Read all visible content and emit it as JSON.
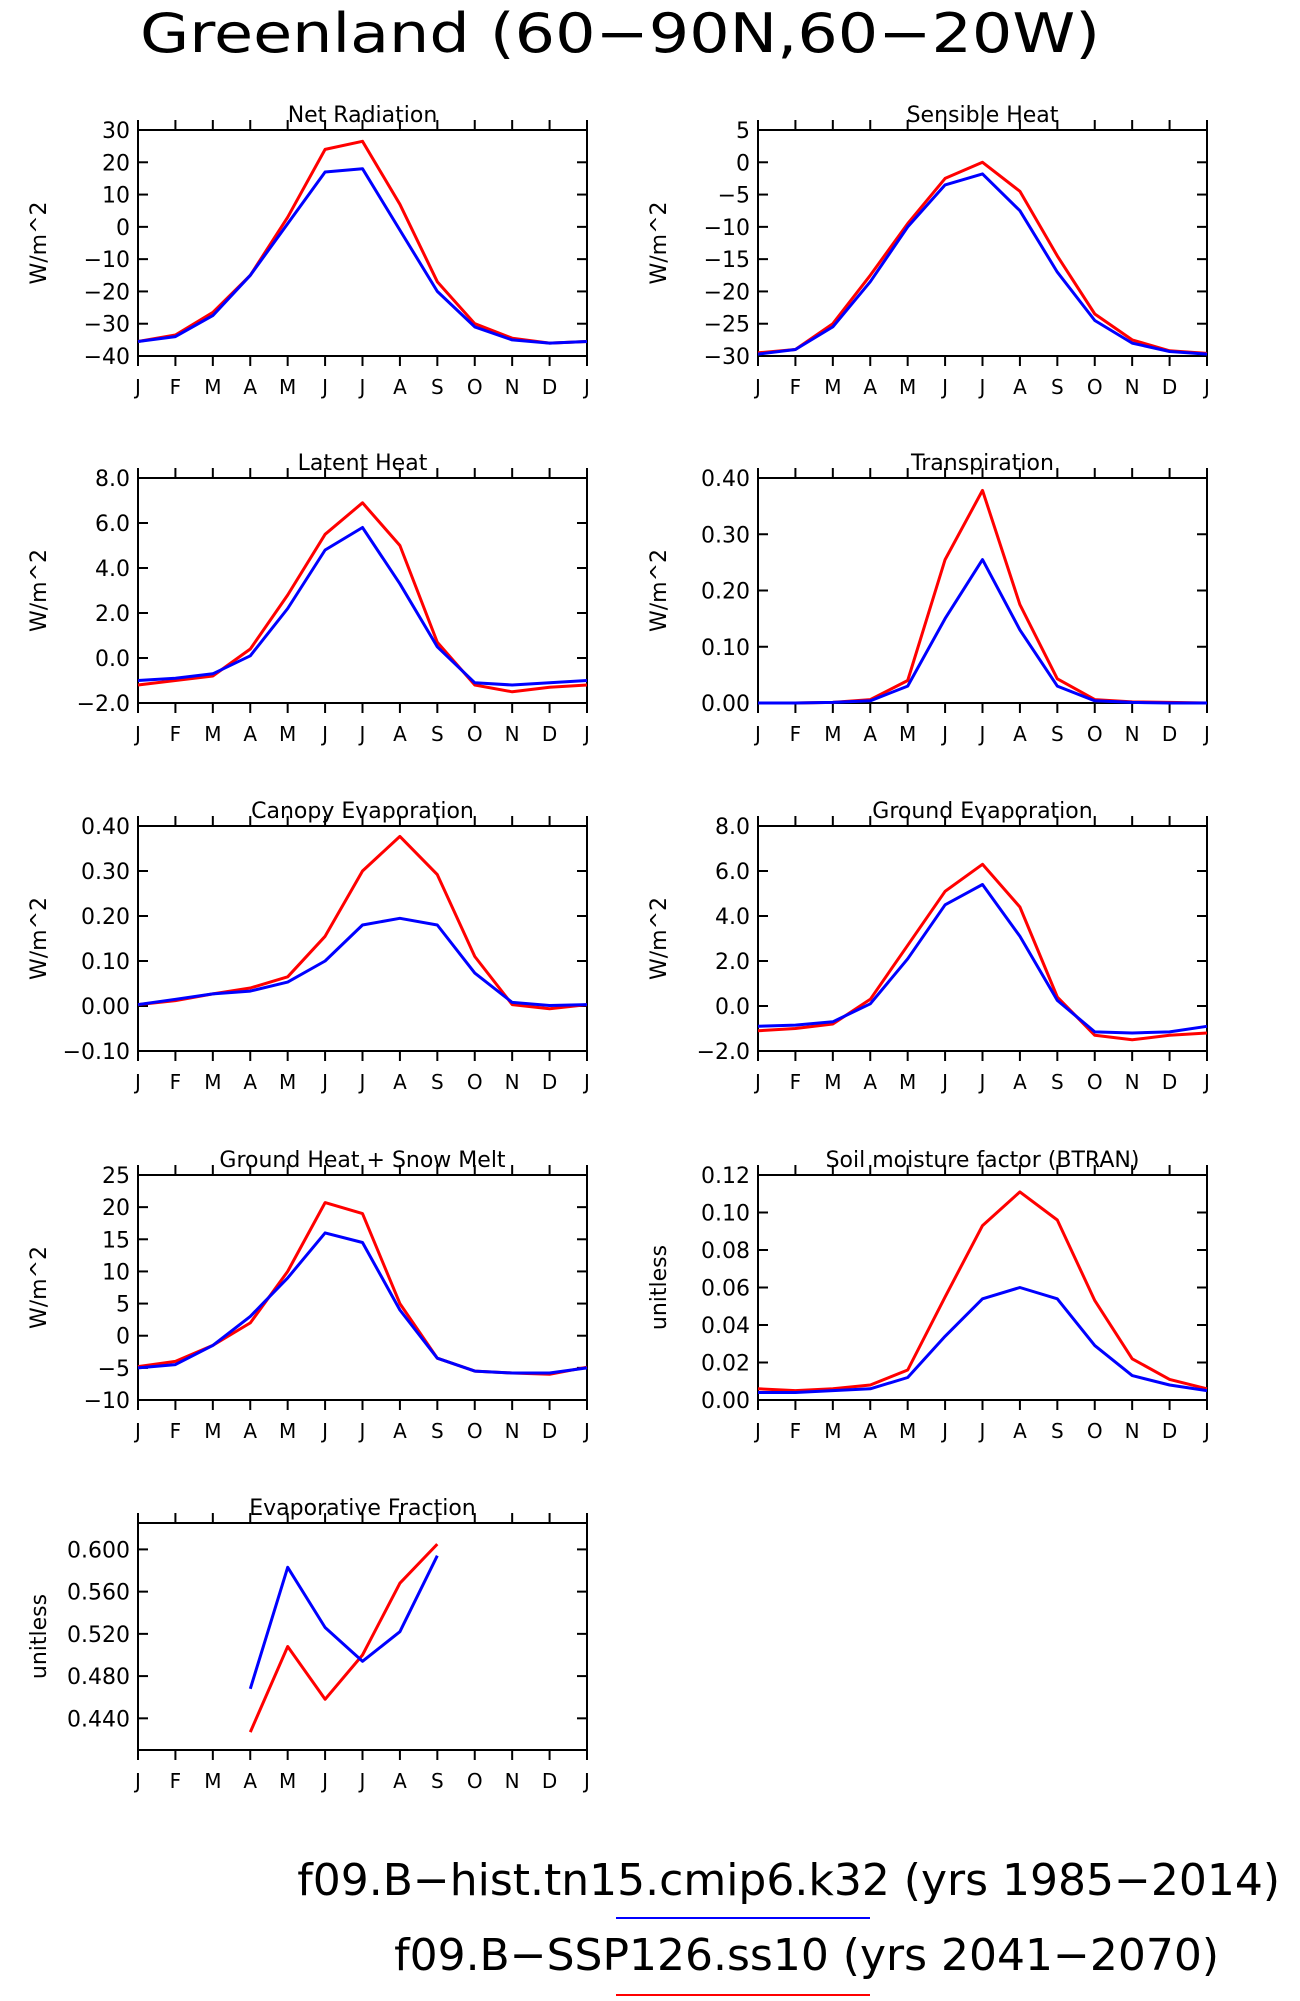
{
  "figure": {
    "title": "Greenland (60−90N,60−20W)",
    "legend": [
      {
        "label": "f09.B−hist.tn15.cmip6.k32 (yrs 1985−2014)",
        "color": "#0000ff"
      },
      {
        "label": "f09.B−SSP126.ss10 (yrs 2041−2070)",
        "color": "#ff0000"
      }
    ]
  },
  "colors": {
    "hist": "#0000ff",
    "ssp": "#ff0000"
  },
  "chart_data": [
    {
      "type": "line",
      "title": "Net Radiation",
      "ylabel": "W/m^2",
      "x": [
        "J",
        "F",
        "M",
        "A",
        "M",
        "J",
        "J",
        "A",
        "S",
        "O",
        "N",
        "D",
        "J"
      ],
      "ylim": [
        -40,
        30
      ],
      "yticks": [
        -40,
        -30,
        -20,
        -10,
        0,
        10,
        20,
        30
      ],
      "ytick_labels": [
        "−40",
        "−30",
        "−20",
        "−10",
        "0",
        "10",
        "20",
        "30"
      ],
      "series": [
        {
          "color": "#ff0000",
          "values": [
            -35.5,
            -33.5,
            -26.5,
            -15,
            3,
            24,
            26.5,
            7,
            -17,
            -30,
            -34.5,
            -36,
            -35.5
          ]
        },
        {
          "color": "#0000ff",
          "values": [
            -35.5,
            -34,
            -27.5,
            -15,
            1,
            17,
            18,
            -1,
            -20,
            -31,
            -35,
            -36,
            -35.5
          ]
        }
      ]
    },
    {
      "type": "line",
      "title": "Sensible Heat",
      "ylabel": "W/m^2",
      "x": [
        "J",
        "F",
        "M",
        "A",
        "M",
        "J",
        "J",
        "A",
        "S",
        "O",
        "N",
        "D",
        "J"
      ],
      "ylim": [
        -30,
        5
      ],
      "yticks": [
        -30,
        -25,
        -20,
        -15,
        -10,
        -5,
        0,
        5
      ],
      "ytick_labels": [
        "−30",
        "−25",
        "−20",
        "−15",
        "−10",
        "−5",
        "0",
        "5"
      ],
      "series": [
        {
          "color": "#ff0000",
          "values": [
            -29.5,
            -29,
            -25,
            -17.5,
            -9.5,
            -2.5,
            0,
            -4.5,
            -14.5,
            -23.5,
            -27.5,
            -29.2,
            -29.6
          ]
        },
        {
          "color": "#0000ff",
          "values": [
            -29.7,
            -29,
            -25.5,
            -18.5,
            -10,
            -3.5,
            -1.8,
            -7.5,
            -17,
            -24.5,
            -28,
            -29.3,
            -29.7
          ]
        }
      ]
    },
    {
      "type": "line",
      "title": "Latent Heat",
      "ylabel": "W/m^2",
      "x": [
        "J",
        "F",
        "M",
        "A",
        "M",
        "J",
        "J",
        "A",
        "S",
        "O",
        "N",
        "D",
        "J"
      ],
      "ylim": [
        -2,
        8
      ],
      "yticks": [
        -2,
        0,
        2,
        4,
        6,
        8
      ],
      "ytick_labels": [
        "−2.0",
        "0.0",
        "2.0",
        "4.0",
        "6.0",
        "8.0"
      ],
      "series": [
        {
          "color": "#ff0000",
          "values": [
            -1.2,
            -1,
            -0.8,
            0.4,
            2.8,
            5.5,
            6.9,
            5,
            0.7,
            -1.2,
            -1.5,
            -1.3,
            -1.2
          ]
        },
        {
          "color": "#0000ff",
          "values": [
            -1,
            -0.9,
            -0.7,
            0.1,
            2.2,
            4.8,
            5.8,
            3.3,
            0.5,
            -1.1,
            -1.2,
            -1.1,
            -1
          ]
        }
      ]
    },
    {
      "type": "line",
      "title": "Transpiration",
      "ylabel": "W/m^2",
      "x": [
        "J",
        "F",
        "M",
        "A",
        "M",
        "J",
        "J",
        "A",
        "S",
        "O",
        "N",
        "D",
        "J"
      ],
      "ylim": [
        0,
        0.4
      ],
      "yticks": [
        0,
        0.1,
        0.2,
        0.3,
        0.4
      ],
      "ytick_labels": [
        "0.00",
        "0.10",
        "0.20",
        "0.30",
        "0.40"
      ],
      "series": [
        {
          "color": "#ff0000",
          "values": [
            0,
            0,
            0.001,
            0.006,
            0.04,
            0.255,
            0.378,
            0.175,
            0.043,
            0.006,
            0.002,
            0.001,
            0
          ]
        },
        {
          "color": "#0000ff",
          "values": [
            0,
            0,
            0.001,
            0.004,
            0.03,
            0.15,
            0.255,
            0.13,
            0.03,
            0.004,
            0.001,
            0,
            0
          ]
        }
      ]
    },
    {
      "type": "line",
      "title": "Canopy Evaporation",
      "ylabel": "W/m^2",
      "x": [
        "J",
        "F",
        "M",
        "A",
        "M",
        "J",
        "J",
        "A",
        "S",
        "O",
        "N",
        "D",
        "J"
      ],
      "ylim": [
        -0.1,
        0.4
      ],
      "yticks": [
        -0.1,
        0,
        0.1,
        0.2,
        0.3,
        0.4
      ],
      "ytick_labels": [
        "−0.10",
        "0.00",
        "0.10",
        "0.20",
        "0.30",
        "0.40"
      ],
      "series": [
        {
          "color": "#ff0000",
          "values": [
            0.003,
            0.012,
            0.027,
            0.04,
            0.065,
            0.155,
            0.3,
            0.377,
            0.292,
            0.11,
            0.003,
            -0.006,
            0.003
          ]
        },
        {
          "color": "#0000ff",
          "values": [
            0.003,
            0.015,
            0.027,
            0.033,
            0.053,
            0.1,
            0.18,
            0.195,
            0.18,
            0.073,
            0.008,
            0.001,
            0.003
          ]
        }
      ]
    },
    {
      "type": "line",
      "title": "Ground Evaporation",
      "ylabel": "W/m^2",
      "x": [
        "J",
        "F",
        "M",
        "A",
        "M",
        "J",
        "J",
        "A",
        "S",
        "O",
        "N",
        "D",
        "J"
      ],
      "ylim": [
        -2,
        8
      ],
      "yticks": [
        -2,
        0,
        2,
        4,
        6,
        8
      ],
      "ytick_labels": [
        "−2.0",
        "0.0",
        "2.0",
        "4.0",
        "6.0",
        "8.0"
      ],
      "series": [
        {
          "color": "#ff0000",
          "values": [
            -1.1,
            -1,
            -0.8,
            0.3,
            2.7,
            5.1,
            6.3,
            4.4,
            0.4,
            -1.3,
            -1.5,
            -1.3,
            -1.2
          ]
        },
        {
          "color": "#0000ff",
          "values": [
            -0.9,
            -0.85,
            -0.7,
            0.1,
            2.1,
            4.5,
            5.4,
            3.1,
            0.25,
            -1.15,
            -1.2,
            -1.15,
            -0.9
          ]
        }
      ]
    },
    {
      "type": "line",
      "title": "Ground Heat + Snow Melt",
      "ylabel": "W/m^2",
      "x": [
        "J",
        "F",
        "M",
        "A",
        "M",
        "J",
        "J",
        "A",
        "S",
        "O",
        "N",
        "D",
        "J"
      ],
      "ylim": [
        -10,
        25
      ],
      "yticks": [
        -10,
        -5,
        0,
        5,
        10,
        15,
        20,
        25
      ],
      "ytick_labels": [
        "−10",
        "−5",
        "0",
        "5",
        "10",
        "15",
        "20",
        "25"
      ],
      "series": [
        {
          "color": "#ff0000",
          "values": [
            -4.8,
            -4,
            -1.5,
            2,
            10,
            20.7,
            19,
            5,
            -3.5,
            -5.5,
            -5.8,
            -6,
            -4.9
          ]
        },
        {
          "color": "#0000ff",
          "values": [
            -5,
            -4.5,
            -1.5,
            3,
            9,
            16,
            14.5,
            4,
            -3.5,
            -5.5,
            -5.8,
            -5.8,
            -5
          ]
        }
      ]
    },
    {
      "type": "line",
      "title": "Soil moisture factor (BTRAN)",
      "ylabel": "unitless",
      "x": [
        "J",
        "F",
        "M",
        "A",
        "M",
        "J",
        "J",
        "A",
        "S",
        "O",
        "N",
        "D",
        "J"
      ],
      "ylim": [
        0,
        0.12
      ],
      "yticks": [
        0,
        0.02,
        0.04,
        0.06,
        0.08,
        0.1,
        0.12
      ],
      "ytick_labels": [
        "0.00",
        "0.02",
        "0.04",
        "0.06",
        "0.08",
        "0.10",
        "0.12"
      ],
      "series": [
        {
          "color": "#ff0000",
          "values": [
            0.006,
            0.005,
            0.006,
            0.008,
            0.016,
            0.055,
            0.093,
            0.111,
            0.096,
            0.053,
            0.022,
            0.011,
            0.006
          ]
        },
        {
          "color": "#0000ff",
          "values": [
            0.004,
            0.004,
            0.005,
            0.006,
            0.012,
            0.034,
            0.054,
            0.06,
            0.054,
            0.029,
            0.013,
            0.008,
            0.005
          ]
        }
      ]
    },
    {
      "type": "line",
      "title": "Evaporative Fraction",
      "ylabel": "unitless",
      "x": [
        "J",
        "F",
        "M",
        "A",
        "M",
        "J",
        "J",
        "A",
        "S",
        "O",
        "N",
        "D",
        "J"
      ],
      "ylim": [
        0.41,
        0.625
      ],
      "yticks": [
        0.44,
        0.48,
        0.52,
        0.56,
        0.6
      ],
      "ytick_labels": [
        "0.440",
        "0.480",
        "0.520",
        "0.560",
        "0.600"
      ],
      "series": [
        {
          "color": "#ff0000",
          "values": [
            null,
            null,
            null,
            0.427,
            0.508,
            0.458,
            0.5,
            0.568,
            0.605,
            null,
            null,
            null,
            null
          ]
        },
        {
          "color": "#0000ff",
          "values": [
            null,
            null,
            null,
            0.468,
            0.583,
            0.526,
            0.494,
            0.522,
            0.594,
            null,
            null,
            null,
            null
          ]
        }
      ]
    }
  ]
}
